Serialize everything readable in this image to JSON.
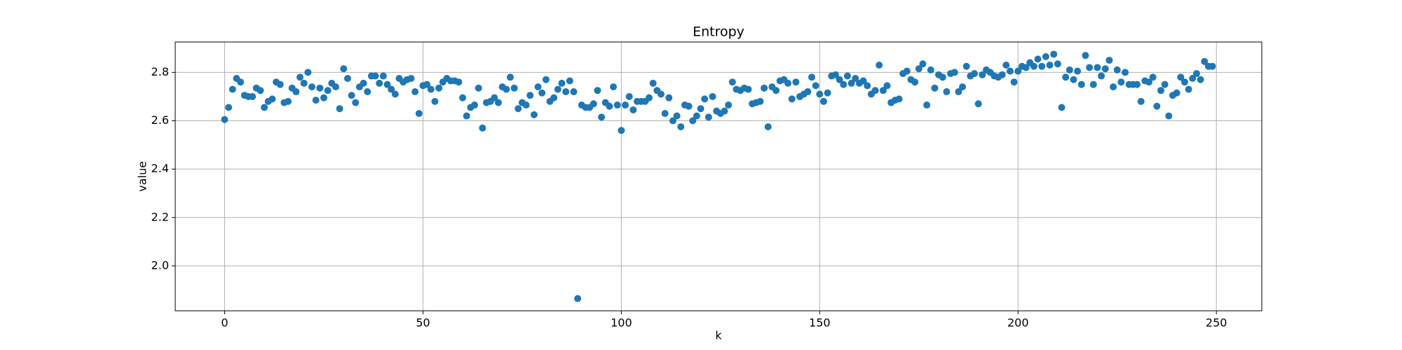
{
  "chart_data": {
    "type": "scatter",
    "title": "Entropy",
    "x_label": "k",
    "y_label": "value",
    "grid": true,
    "series": [
      {
        "color": "#1f77b4",
        "x": [
          0,
          1,
          2,
          3,
          4,
          5,
          6,
          7,
          8,
          9,
          10,
          11,
          12,
          13,
          14,
          15,
          16,
          17,
          18,
          19,
          20,
          21,
          22,
          23,
          24,
          25,
          26,
          27,
          28,
          29,
          30,
          31,
          32,
          33,
          34,
          35,
          36,
          37,
          38,
          39,
          40,
          41,
          42,
          43,
          44,
          45,
          46,
          47,
          48,
          49,
          50,
          51,
          52,
          53,
          54,
          55,
          56,
          57,
          58,
          59,
          60,
          61,
          62,
          63,
          64,
          65,
          66,
          67,
          68,
          69,
          70,
          71,
          72,
          73,
          74,
          75,
          76,
          77,
          78,
          79,
          80,
          81,
          82,
          83,
          84,
          85,
          86,
          87,
          88,
          89,
          90,
          91,
          92,
          93,
          94,
          95,
          96,
          97,
          98,
          99,
          100,
          101,
          102,
          103,
          104,
          105,
          106,
          107,
          108,
          109,
          110,
          111,
          112,
          113,
          114,
          115,
          116,
          117,
          118,
          119,
          120,
          121,
          122,
          123,
          124,
          125,
          126,
          127,
          128,
          129,
          130,
          131,
          132,
          133,
          134,
          135,
          136,
          137,
          138,
          139,
          140,
          141,
          142,
          143,
          144,
          145,
          146,
          147,
          148,
          149,
          150,
          151,
          152,
          153,
          154,
          155,
          156,
          157,
          158,
          159,
          160,
          161,
          162,
          163,
          164,
          165,
          166,
          167,
          168,
          169,
          170,
          171,
          172,
          173,
          174,
          175,
          176,
          177,
          178,
          179,
          180,
          181,
          182,
          183,
          184,
          185,
          186,
          187,
          188,
          189,
          190,
          191,
          192,
          193,
          194,
          195,
          196,
          197,
          198,
          199,
          200,
          201,
          202,
          203,
          204,
          205,
          206,
          207,
          208,
          209,
          210,
          211,
          212,
          213,
          214,
          215,
          216,
          217,
          218,
          219,
          220,
          221,
          222,
          223,
          224,
          225,
          226,
          227,
          228,
          229,
          230,
          231,
          232,
          233,
          234,
          235,
          236,
          237,
          238,
          239,
          240,
          241,
          242,
          243,
          244,
          245,
          246,
          247,
          248,
          249
        ],
        "values": [
          2.605,
          2.655,
          2.73,
          2.775,
          2.76,
          2.705,
          2.7,
          2.7,
          2.735,
          2.725,
          2.655,
          2.68,
          2.69,
          2.76,
          2.75,
          2.675,
          2.68,
          2.735,
          2.72,
          2.78,
          2.755,
          2.8,
          2.74,
          2.685,
          2.735,
          2.695,
          2.725,
          2.755,
          2.74,
          2.65,
          2.815,
          2.775,
          2.705,
          2.675,
          2.74,
          2.755,
          2.72,
          2.785,
          2.785,
          2.755,
          2.785,
          2.75,
          2.73,
          2.71,
          2.775,
          2.76,
          2.77,
          2.775,
          2.72,
          2.63,
          2.745,
          2.75,
          2.73,
          2.68,
          2.735,
          2.76,
          2.775,
          2.765,
          2.765,
          2.76,
          2.695,
          2.62,
          2.655,
          2.665,
          2.735,
          2.57,
          2.675,
          2.68,
          2.695,
          2.675,
          2.74,
          2.73,
          2.78,
          2.735,
          2.65,
          2.675,
          2.665,
          2.705,
          2.625,
          2.74,
          2.715,
          2.77,
          2.68,
          2.695,
          2.73,
          2.755,
          2.72,
          2.765,
          2.72,
          1.865,
          2.665,
          2.655,
          2.655,
          2.67,
          2.725,
          2.615,
          2.675,
          2.66,
          2.74,
          2.665,
          2.56,
          2.665,
          2.7,
          2.645,
          2.68,
          2.68,
          2.68,
          2.695,
          2.755,
          2.725,
          2.71,
          2.63,
          2.695,
          2.6,
          2.62,
          2.575,
          2.665,
          2.66,
          2.6,
          2.62,
          2.65,
          2.69,
          2.615,
          2.7,
          2.64,
          2.63,
          2.64,
          2.665,
          2.76,
          2.73,
          2.725,
          2.735,
          2.73,
          2.67,
          2.675,
          2.68,
          2.735,
          2.575,
          2.74,
          2.725,
          2.765,
          2.77,
          2.755,
          2.69,
          2.76,
          2.7,
          2.71,
          2.72,
          2.78,
          2.745,
          2.71,
          2.68,
          2.715,
          2.785,
          2.79,
          2.77,
          2.75,
          2.785,
          2.755,
          2.775,
          2.755,
          2.765,
          2.745,
          2.71,
          2.725,
          2.83,
          2.725,
          2.745,
          2.675,
          2.685,
          2.69,
          2.795,
          2.805,
          2.77,
          2.76,
          2.815,
          2.835,
          2.665,
          2.81,
          2.735,
          2.79,
          2.78,
          2.72,
          2.795,
          2.8,
          2.72,
          2.74,
          2.825,
          2.785,
          2.795,
          2.67,
          2.79,
          2.81,
          2.8,
          2.785,
          2.78,
          2.79,
          2.83,
          2.805,
          2.76,
          2.805,
          2.825,
          2.82,
          2.84,
          2.825,
          2.855,
          2.825,
          2.865,
          2.83,
          2.875,
          2.835,
          2.655,
          2.78,
          2.81,
          2.77,
          2.805,
          2.75,
          2.87,
          2.82,
          2.75,
          2.82,
          2.785,
          2.815,
          2.85,
          2.74,
          2.81,
          2.76,
          2.8,
          2.75,
          2.75,
          2.75,
          2.68,
          2.765,
          2.76,
          2.78,
          2.66,
          2.725,
          2.75,
          2.62,
          2.705,
          2.715,
          2.78,
          2.76,
          2.73,
          2.775,
          2.795,
          2.77,
          2.845,
          2.825,
          2.825
        ]
      }
    ],
    "xlim": [
      -12.45,
      261.45
    ],
    "xticks": [
      0,
      50,
      100,
      150,
      200,
      250
    ],
    "ylim": [
      1.8145,
      2.9255
    ],
    "yticks": [
      {
        "value": 2,
        "label": "2.0"
      },
      2.2,
      2.4,
      2.6,
      2.8
    ]
  }
}
